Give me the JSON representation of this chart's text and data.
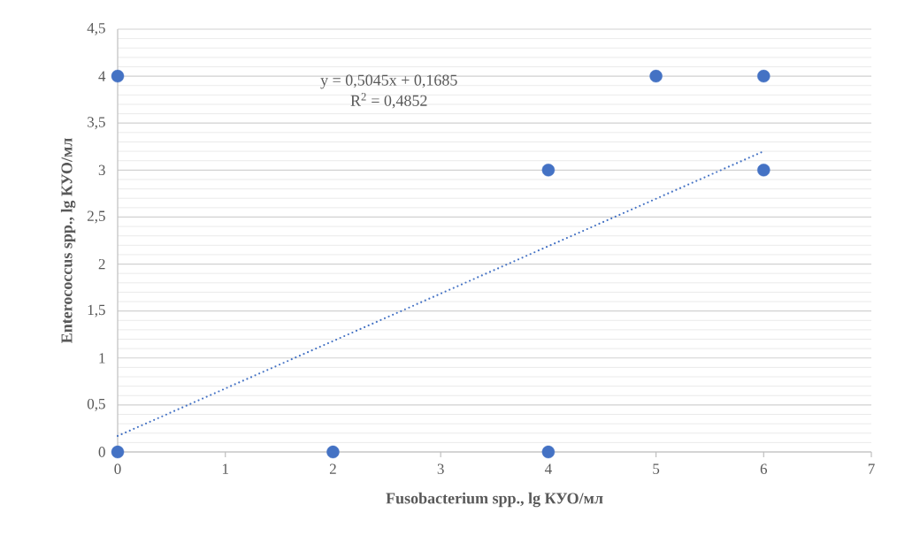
{
  "chart_data": {
    "type": "scatter",
    "xlabel": "Fusobacterium spp., lg КУО/мл",
    "ylabel": "Enterococcus spp., lg КУО/мл",
    "annotations": [
      "y = 0,5045x + 0,1685",
      "R$^{2}$ = 0,4852"
    ],
    "series": [
      {
        "color": "#4472c4",
        "marker": "circle",
        "x": [
          0,
          0,
          2,
          4,
          4,
          5,
          6,
          6
        ],
        "values": [
          4,
          0,
          0,
          0,
          3,
          4,
          4,
          3
        ]
      },
      {
        "type": "line",
        "color": "#4472c4",
        "line_style": "dotted",
        "marker": "none",
        "x": [
          0,
          6
        ],
        "values": [
          0.17,
          3.2
        ]
      }
    ],
    "xlim": [
      0,
      7
    ],
    "xticks": [
      0,
      1,
      2,
      3,
      4,
      5,
      6,
      7
    ],
    "ylim": [
      0,
      4.5
    ],
    "yticks": [
      0,
      {
        "value": 0.5,
        "label": "0,5"
      },
      1,
      {
        "value": 1.5,
        "label": "1,5"
      },
      2,
      {
        "value": 2.5,
        "label": "2,5"
      },
      3,
      {
        "value": 3.5,
        "label": "3,5"
      },
      4,
      {
        "value": 4.5,
        "label": "4,5"
      }
    ],
    "grid": "y"
  }
}
